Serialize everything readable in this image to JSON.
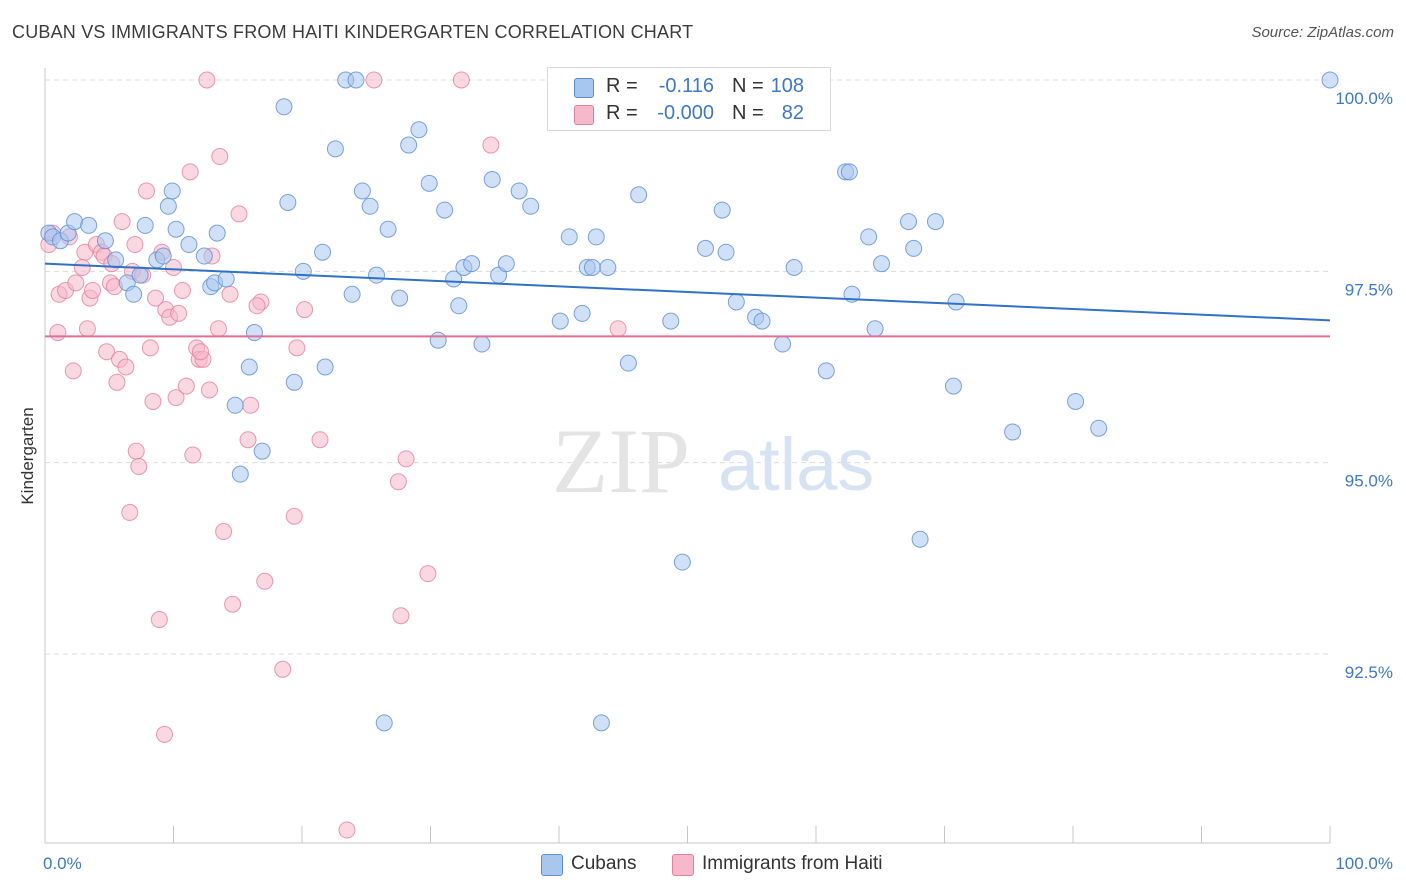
{
  "title": "CUBAN VS IMMIGRANTS FROM HAITI KINDERGARTEN CORRELATION CHART",
  "source": "Source: ZipAtlas.com",
  "watermark": {
    "zip": "ZIP",
    "atlas": "atlas"
  },
  "legend_stats": {
    "cubans": {
      "r_label": "R =",
      "r_value": "-0.116",
      "n_label": "N =",
      "n_value": "108"
    },
    "haiti": {
      "r_label": "R =",
      "r_value": "-0.000",
      "n_label": "N =",
      "n_value": "82"
    }
  },
  "bottom_legend": {
    "cubans": "Cubans",
    "haiti": "Immigrants from Haiti"
  },
  "colors": {
    "cubans_fill": "#a9c6ee",
    "cubans_stroke": "#5b8fd4",
    "cubans_line": "#2f72c8",
    "haiti_fill": "#f6b8cb",
    "haiti_stroke": "#e57fa0",
    "haiti_line": "#e46d93",
    "tick_label": "#3e78c8",
    "grid": "#dcdcdc"
  },
  "chart_data": {
    "type": "scatter",
    "xlabel": "",
    "ylabel": "Kindergarten",
    "xlim": [
      0,
      100
    ],
    "ylim": [
      90.2,
      100.5
    ],
    "x_tick_labels": [
      "0.0%",
      "100.0%"
    ],
    "y_ticks": [
      92.5,
      95.0,
      97.5,
      100.0
    ],
    "y_tick_labels": [
      "92.5%",
      "95.0%",
      "97.5%",
      "100.0%"
    ],
    "grid": "horizontal dashed",
    "legend_position": "top-center",
    "series": [
      {
        "name": "Cubans",
        "trend": {
          "x": [
            0,
            100
          ],
          "y": [
            97.6,
            96.86
          ]
        },
        "points": [
          [
            0.3,
            98.0
          ],
          [
            0.6,
            97.95
          ],
          [
            1.2,
            97.9
          ],
          [
            1.8,
            98.0
          ],
          [
            2.3,
            98.15
          ],
          [
            3.4,
            98.1
          ],
          [
            4.7,
            97.9
          ],
          [
            5.5,
            97.65
          ],
          [
            6.4,
            97.35
          ],
          [
            6.9,
            97.2
          ],
          [
            7.4,
            97.45
          ],
          [
            7.8,
            98.1
          ],
          [
            8.7,
            97.65
          ],
          [
            9.2,
            97.7
          ],
          [
            9.6,
            98.35
          ],
          [
            9.9,
            98.55
          ],
          [
            10.2,
            98.05
          ],
          [
            11.2,
            97.85
          ],
          [
            12.4,
            97.7
          ],
          [
            12.9,
            97.3
          ],
          [
            13.2,
            97.35
          ],
          [
            13.4,
            98.0
          ],
          [
            14.1,
            97.4
          ],
          [
            14.8,
            95.75
          ],
          [
            15.2,
            94.85
          ],
          [
            15.9,
            96.25
          ],
          [
            16.3,
            96.7
          ],
          [
            16.9,
            95.15
          ],
          [
            18.6,
            99.65
          ],
          [
            18.9,
            98.4
          ],
          [
            19.4,
            96.05
          ],
          [
            20.1,
            97.5
          ],
          [
            21.6,
            97.75
          ],
          [
            21.8,
            96.25
          ],
          [
            22.6,
            99.1
          ],
          [
            23.4,
            100.0
          ],
          [
            23.9,
            97.2
          ],
          [
            24.2,
            100.0
          ],
          [
            24.7,
            98.55
          ],
          [
            25.3,
            98.35
          ],
          [
            25.8,
            97.45
          ],
          [
            26.4,
            91.6
          ],
          [
            26.7,
            98.05
          ],
          [
            27.6,
            97.15
          ],
          [
            28.3,
            99.15
          ],
          [
            29.1,
            99.35
          ],
          [
            29.9,
            98.65
          ],
          [
            30.6,
            96.6
          ],
          [
            31.1,
            98.3
          ],
          [
            31.8,
            97.4
          ],
          [
            32.2,
            97.05
          ],
          [
            32.6,
            97.55
          ],
          [
            33.2,
            97.6
          ],
          [
            34.0,
            96.55
          ],
          [
            34.8,
            98.7
          ],
          [
            35.3,
            97.45
          ],
          [
            35.9,
            97.6
          ],
          [
            36.9,
            98.55
          ],
          [
            37.8,
            98.35
          ],
          [
            40.1,
            96.85
          ],
          [
            40.8,
            97.95
          ],
          [
            41.8,
            96.95
          ],
          [
            42.2,
            97.55
          ],
          [
            42.6,
            97.55
          ],
          [
            42.9,
            97.95
          ],
          [
            43.3,
            91.6
          ],
          [
            43.8,
            97.55
          ],
          [
            45.4,
            96.3
          ],
          [
            46.2,
            98.5
          ],
          [
            48.7,
            96.85
          ],
          [
            49.6,
            93.7
          ],
          [
            51.4,
            97.8
          ],
          [
            52.7,
            98.3
          ],
          [
            53.0,
            97.75
          ],
          [
            53.8,
            97.1
          ],
          [
            55.3,
            96.9
          ],
          [
            55.8,
            96.85
          ],
          [
            57.4,
            96.55
          ],
          [
            58.3,
            97.55
          ],
          [
            60.8,
            96.2
          ],
          [
            62.3,
            98.8
          ],
          [
            62.6,
            98.8
          ],
          [
            62.8,
            97.2
          ],
          [
            64.1,
            97.95
          ],
          [
            64.6,
            96.75
          ],
          [
            65.1,
            97.6
          ],
          [
            67.2,
            98.15
          ],
          [
            67.6,
            97.8
          ],
          [
            68.1,
            94.0
          ],
          [
            69.3,
            98.15
          ],
          [
            70.7,
            96.0
          ],
          [
            70.9,
            97.1
          ],
          [
            75.3,
            95.4
          ],
          [
            80.2,
            95.8
          ],
          [
            82.0,
            95.45
          ],
          [
            100.0,
            100.0
          ]
        ]
      },
      {
        "name": "Immigrants from Haiti",
        "trend": {
          "x": [
            0,
            100
          ],
          "y": [
            96.65,
            96.65
          ]
        },
        "points": [
          [
            0.3,
            97.85
          ],
          [
            0.6,
            98.0
          ],
          [
            1.0,
            96.7
          ],
          [
            1.1,
            97.2
          ],
          [
            1.6,
            97.25
          ],
          [
            1.9,
            97.95
          ],
          [
            2.2,
            96.2
          ],
          [
            2.4,
            97.35
          ],
          [
            3.1,
            97.75
          ],
          [
            3.3,
            96.75
          ],
          [
            3.5,
            97.15
          ],
          [
            3.7,
            97.25
          ],
          [
            4.0,
            97.85
          ],
          [
            4.4,
            97.75
          ],
          [
            4.6,
            97.7
          ],
          [
            4.8,
            96.45
          ],
          [
            5.1,
            97.35
          ],
          [
            5.4,
            97.3
          ],
          [
            5.6,
            96.05
          ],
          [
            5.8,
            96.35
          ],
          [
            6.0,
            98.15
          ],
          [
            6.3,
            96.25
          ],
          [
            6.6,
            94.35
          ],
          [
            6.8,
            97.5
          ],
          [
            7.1,
            95.15
          ],
          [
            7.3,
            94.95
          ],
          [
            7.6,
            97.45
          ],
          [
            7.9,
            98.55
          ],
          [
            8.2,
            96.5
          ],
          [
            8.4,
            95.8
          ],
          [
            8.6,
            97.15
          ],
          [
            8.9,
            92.95
          ],
          [
            9.1,
            97.75
          ],
          [
            9.4,
            97.0
          ],
          [
            9.7,
            96.9
          ],
          [
            10.0,
            97.55
          ],
          [
            10.2,
            95.85
          ],
          [
            10.4,
            96.95
          ],
          [
            10.7,
            97.25
          ],
          [
            11.0,
            96.0
          ],
          [
            11.3,
            98.8
          ],
          [
            11.5,
            95.1
          ],
          [
            11.8,
            96.5
          ],
          [
            12.0,
            96.35
          ],
          [
            12.3,
            96.35
          ],
          [
            12.6,
            100.0
          ],
          [
            12.8,
            95.95
          ],
          [
            13.0,
            97.7
          ],
          [
            13.5,
            96.75
          ],
          [
            13.6,
            99.0
          ],
          [
            13.9,
            94.1
          ],
          [
            14.4,
            97.2
          ],
          [
            14.6,
            93.15
          ],
          [
            15.1,
            98.25
          ],
          [
            15.8,
            95.3
          ],
          [
            16.0,
            95.75
          ],
          [
            16.8,
            97.1
          ],
          [
            17.1,
            93.45
          ],
          [
            18.5,
            92.3
          ],
          [
            19.4,
            94.3
          ],
          [
            19.6,
            96.5
          ],
          [
            20.2,
            97.0
          ],
          [
            21.4,
            95.3
          ],
          [
            23.5,
            90.2
          ],
          [
            25.6,
            100.0
          ],
          [
            27.5,
            94.75
          ],
          [
            27.7,
            93.0
          ],
          [
            28.1,
            95.05
          ],
          [
            29.8,
            93.55
          ],
          [
            32.4,
            100.0
          ],
          [
            34.7,
            99.15
          ],
          [
            44.6,
            96.75
          ],
          [
            9.3,
            91.45
          ],
          [
            7.0,
            97.85
          ],
          [
            2.9,
            97.55
          ],
          [
            5.2,
            97.6
          ],
          [
            12.1,
            96.45
          ],
          [
            16.5,
            97.05
          ]
        ]
      }
    ]
  }
}
